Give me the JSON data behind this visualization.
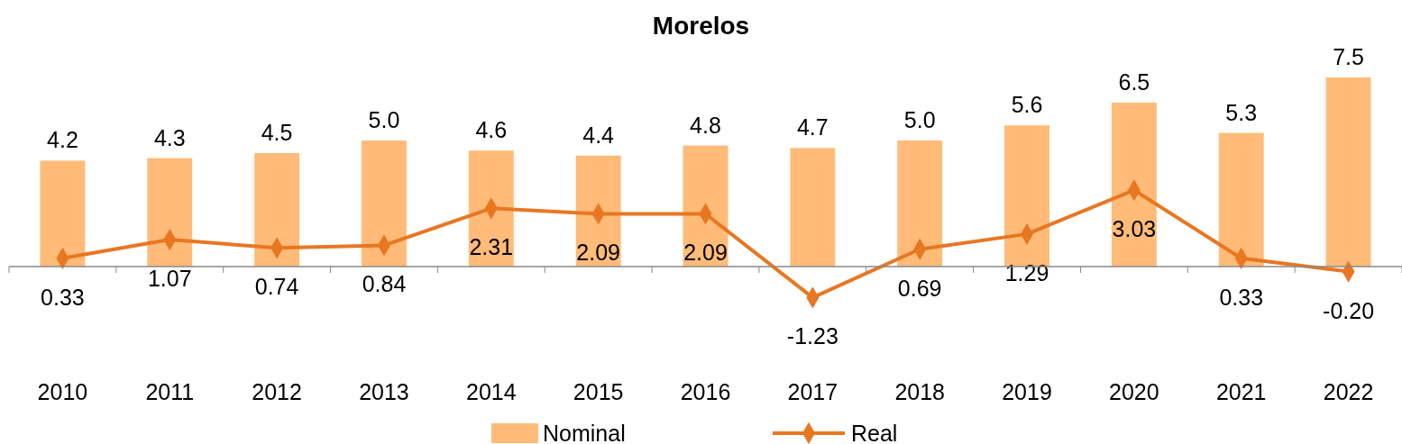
{
  "chart_data": {
    "type": "bar",
    "title": "Morelos",
    "categories": [
      "2010",
      "2011",
      "2012",
      "2013",
      "2014",
      "2015",
      "2016",
      "2017",
      "2018",
      "2019",
      "2020",
      "2021",
      "2022"
    ],
    "series": [
      {
        "name": "Nominal",
        "color": "#ffbb77",
        "values": [
          4.2,
          4.3,
          4.5,
          5.0,
          4.6,
          4.4,
          4.8,
          4.7,
          5.0,
          5.6,
          6.5,
          5.3,
          7.5
        ],
        "value_labels": [
          "4.2",
          "4.3",
          "4.5",
          "5.0",
          "4.6",
          "4.4",
          "4.8",
          "4.7",
          "5.0",
          "5.6",
          "6.5",
          "5.3",
          "7.5"
        ]
      },
      {
        "name": "Real",
        "type": "line",
        "color": "#e87722",
        "marker": "diamond",
        "values": [
          0.33,
          1.07,
          0.74,
          0.84,
          2.31,
          2.09,
          2.09,
          -1.23,
          0.69,
          1.29,
          3.03,
          0.33,
          -0.2
        ],
        "value_labels": [
          "0.33",
          "1.07",
          "0.74",
          "0.84",
          "2.31",
          "2.09",
          "2.09",
          "-1.23",
          "0.69",
          "1.29",
          "3.03",
          "0.33",
          "-0.20"
        ]
      }
    ],
    "tick_labels": "x",
    "legend": "bottom"
  }
}
